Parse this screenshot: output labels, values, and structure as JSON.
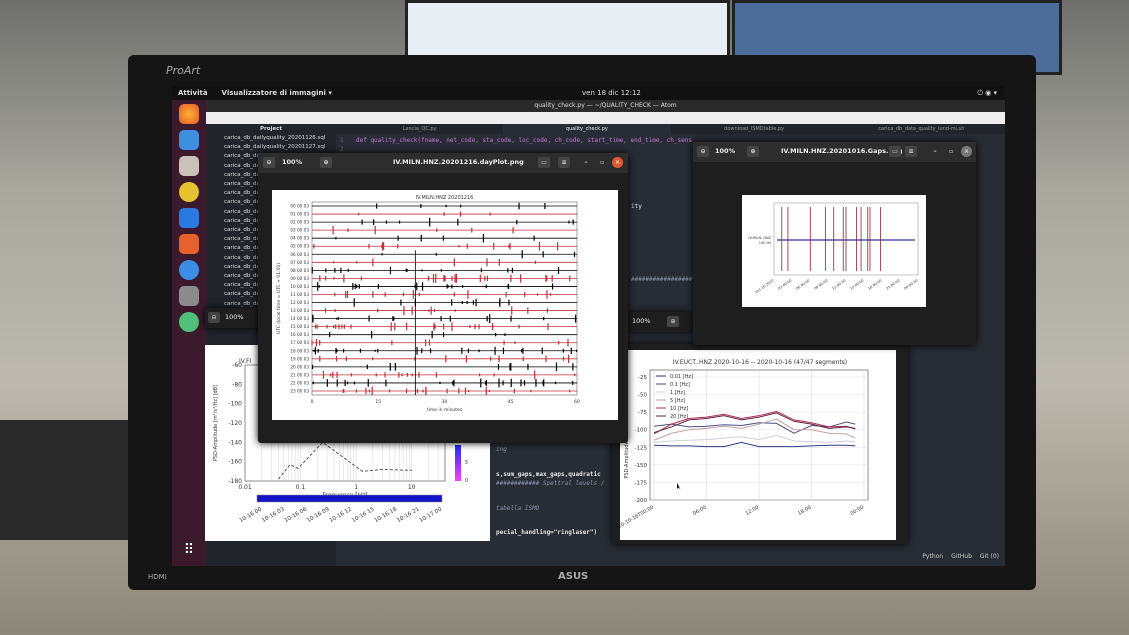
{
  "bezel": {
    "brand_top": "ProArt",
    "brand_bottom": "ASUS",
    "port_label": "HDMI"
  },
  "topbar": {
    "activities": "Attività",
    "app_menu": "Visualizzatore di immagini ▾",
    "clock": "ven 18 dic 12:12"
  },
  "dock": {
    "icons": [
      "firefox-icon",
      "thunderbird-icon",
      "files-icon",
      "rhythmbox-icon",
      "writer-icon",
      "software-icon",
      "help-icon",
      "image-viewer-icon",
      "update-icon"
    ],
    "apps_grid": "show-apps-icon"
  },
  "atom": {
    "title": "quality_check.py — ~/QUALITY_CHECK — Atom",
    "tree_header": "Project",
    "files": [
      "carica_db_dailyquality_20201126.sql",
      "carica_db_dailyquality_20201127.sql",
      "carica_db_da",
      "carica_db_da",
      "carica_db_da",
      "carica_db_da",
      "carica_db_da",
      "carica_db_da",
      "carica_db_da",
      "carica_db_da",
      "carica_db_da",
      "carica_db_da",
      "carica_db_da",
      "carica_db_da",
      "carica_db_da",
      "carica_db_da",
      "carica_db_da",
      "carica_db_da",
      "carica_db_da"
    ],
    "tabs": [
      "Lancia_QC.py",
      "quality_check.py",
      "download_ISMDtable.py",
      "carica_db_data_quality_lund-mi.sh"
    ],
    "active_tab": 1,
    "code_line1_num": "1",
    "code_line1": "def quality_check(fname, net_code, sta_code, loc_code, ch_code, start_time, end_time, ch_sens",
    "code_line2_num": "2",
    "frag_ity": "ity",
    "frag_hash": "#################",
    "frag_ing": "ing",
    "frag_sum": "s,sum_gaps,max_gaps,quadratic",
    "frag_spettral": "############ Spettral levels /",
    "frag_tabella": "tabella ISMD",
    "frag_special": "pecial_handling=\"ringlaser\")",
    "status": [
      "Python",
      "GitHub",
      "Git (0)"
    ]
  },
  "viewer_dayplot": {
    "zoom": "100%",
    "title": "IV.MILN.HNZ.20201216.dayPlot.png"
  },
  "viewer_gaps": {
    "zoom": "100%",
    "title": "IV.MILN.HNZ.20201016.Gaps.png"
  },
  "viewer_small1": {
    "zoom": "100%"
  },
  "viewer_small2": {
    "zoom": "100%"
  },
  "chart_data": [
    {
      "type": "line",
      "title": "IV.MILN.HNZ 20201216",
      "xlabel": "time in minutes",
      "ylabel": "UTC (local time = UTC + 01:00)",
      "x_ticks": [
        0,
        15,
        30,
        45,
        60
      ],
      "xlim": [
        0,
        60
      ],
      "row_labels": [
        "00 00 03",
        "01 00 03",
        "02 00 03",
        "03 00 03",
        "04 00 03",
        "05 00 03",
        "06 00 03",
        "07 00 03",
        "08 00 03",
        "09 00 03",
        "10 00 03",
        "11 00 03",
        "12 00 03",
        "13 00 03",
        "14 00 03",
        "15 00 03",
        "16 00 03",
        "17 00 03",
        "18 00 03",
        "19 00 03",
        "20 00 03",
        "21 00 03",
        "22 00 03",
        "23 00 03"
      ],
      "row_colors": [
        "#000000",
        "#c0303a"
      ]
    },
    {
      "type": "line",
      "title": "",
      "ylabel": "",
      "labels": [
        "IV.MILN..HNZ",
        "100 Hz"
      ],
      "gap_hours": [
        0.5,
        1.6,
        5.6,
        8.3,
        9.8,
        11.5,
        12.0,
        13.9,
        14.7,
        15.9,
        16.3,
        18.2
      ],
      "x_ticks": [
        "Oct 16 2020",
        "03:00:00",
        "06:00:00",
        "09:00:00",
        "12:00:00",
        "15:00:00",
        "18:00:00",
        "21:00:00",
        "00:00:00"
      ],
      "xlim": [
        0,
        24
      ],
      "colors": {
        "gap": "#8b2033",
        "trace": "#3030a0"
      }
    },
    {
      "type": "line",
      "title": "IV.FI",
      "xlabel": "Frequency [Hz]",
      "ylabel": "PSD-Amplitude [m²/s⁴/Hz] [dB]",
      "y_ticks": [
        -60,
        -80,
        -100,
        -120,
        -140,
        -160,
        -180
      ],
      "ylim": [
        -180,
        -60
      ],
      "x_ticks": [
        "0.01",
        "0.1",
        "1",
        "10"
      ],
      "xscale": "log",
      "series": [
        {
          "x": [
            0.04,
            0.065,
            0.09,
            0.25,
            1.3,
            3,
            10
          ],
          "y": [
            -178,
            -163,
            -167,
            -140,
            -170,
            -168,
            -169
          ]
        }
      ],
      "colorbar_ticks": [
        "5",
        "0"
      ],
      "time_ticks": [
        "10-16 00",
        "10-16 03",
        "10-16 06",
        "10-16 09",
        "10-16 12",
        "10-16 15",
        "10-16 18",
        "10-16 21",
        "10-17 00"
      ]
    },
    {
      "type": "line",
      "title": "IV.EUCT..HNZ   2020-10-16 -- 2020-10-16  (47/47 segments)",
      "xlabel": "",
      "ylabel": "PSD-Amplitude",
      "y_ticks": [
        -25,
        -50,
        -75,
        -100,
        -125,
        -150,
        -175,
        -200
      ],
      "ylim": [
        -200,
        -15
      ],
      "x_ticks": [
        "2020-10-16T00:00",
        "06:00",
        "12:00",
        "18:00",
        "00:00"
      ],
      "xlim": [
        0,
        24
      ],
      "x": [
        0,
        2,
        4,
        6,
        8,
        10,
        12,
        14,
        16,
        18,
        20,
        22,
        23
      ],
      "series": [
        {
          "name": "0.01 [Hz]",
          "color": "#303a8a",
          "values": [
            -122,
            -123,
            -123,
            -124,
            -124,
            -118,
            -124,
            -124,
            -124,
            -123,
            -122,
            -122,
            -123
          ]
        },
        {
          "name": "0.1 [Hz]",
          "color": "#4a5088",
          "values": [
            -95,
            -92,
            -96,
            -95,
            -93,
            -94,
            -90,
            -91,
            -105,
            -94,
            -96,
            -89,
            -92
          ]
        },
        {
          "name": "1 [Hz]",
          "color": "#cfcfe0",
          "values": [
            -118,
            -116,
            -115,
            -114,
            -112,
            -110,
            -114,
            -108,
            -116,
            -117,
            -118,
            -116,
            -117
          ]
        },
        {
          "name": "5 [Hz]",
          "color": "#c8a0a0",
          "values": [
            -115,
            -105,
            -100,
            -98,
            -95,
            -98,
            -92,
            -85,
            -100,
            -100,
            -105,
            -106,
            -112
          ]
        },
        {
          "name": "10 [Hz]",
          "color": "#b03050",
          "values": [
            -106,
            -92,
            -84,
            -82,
            -78,
            -84,
            -80,
            -74,
            -86,
            -90,
            -96,
            -95,
            -99
          ]
        },
        {
          "name": "20 [Hz]",
          "color": "#602040",
          "values": [
            -104,
            -96,
            -86,
            -84,
            -80,
            -86,
            -82,
            -76,
            -88,
            -92,
            -98,
            -96,
            -98
          ]
        }
      ]
    }
  ]
}
